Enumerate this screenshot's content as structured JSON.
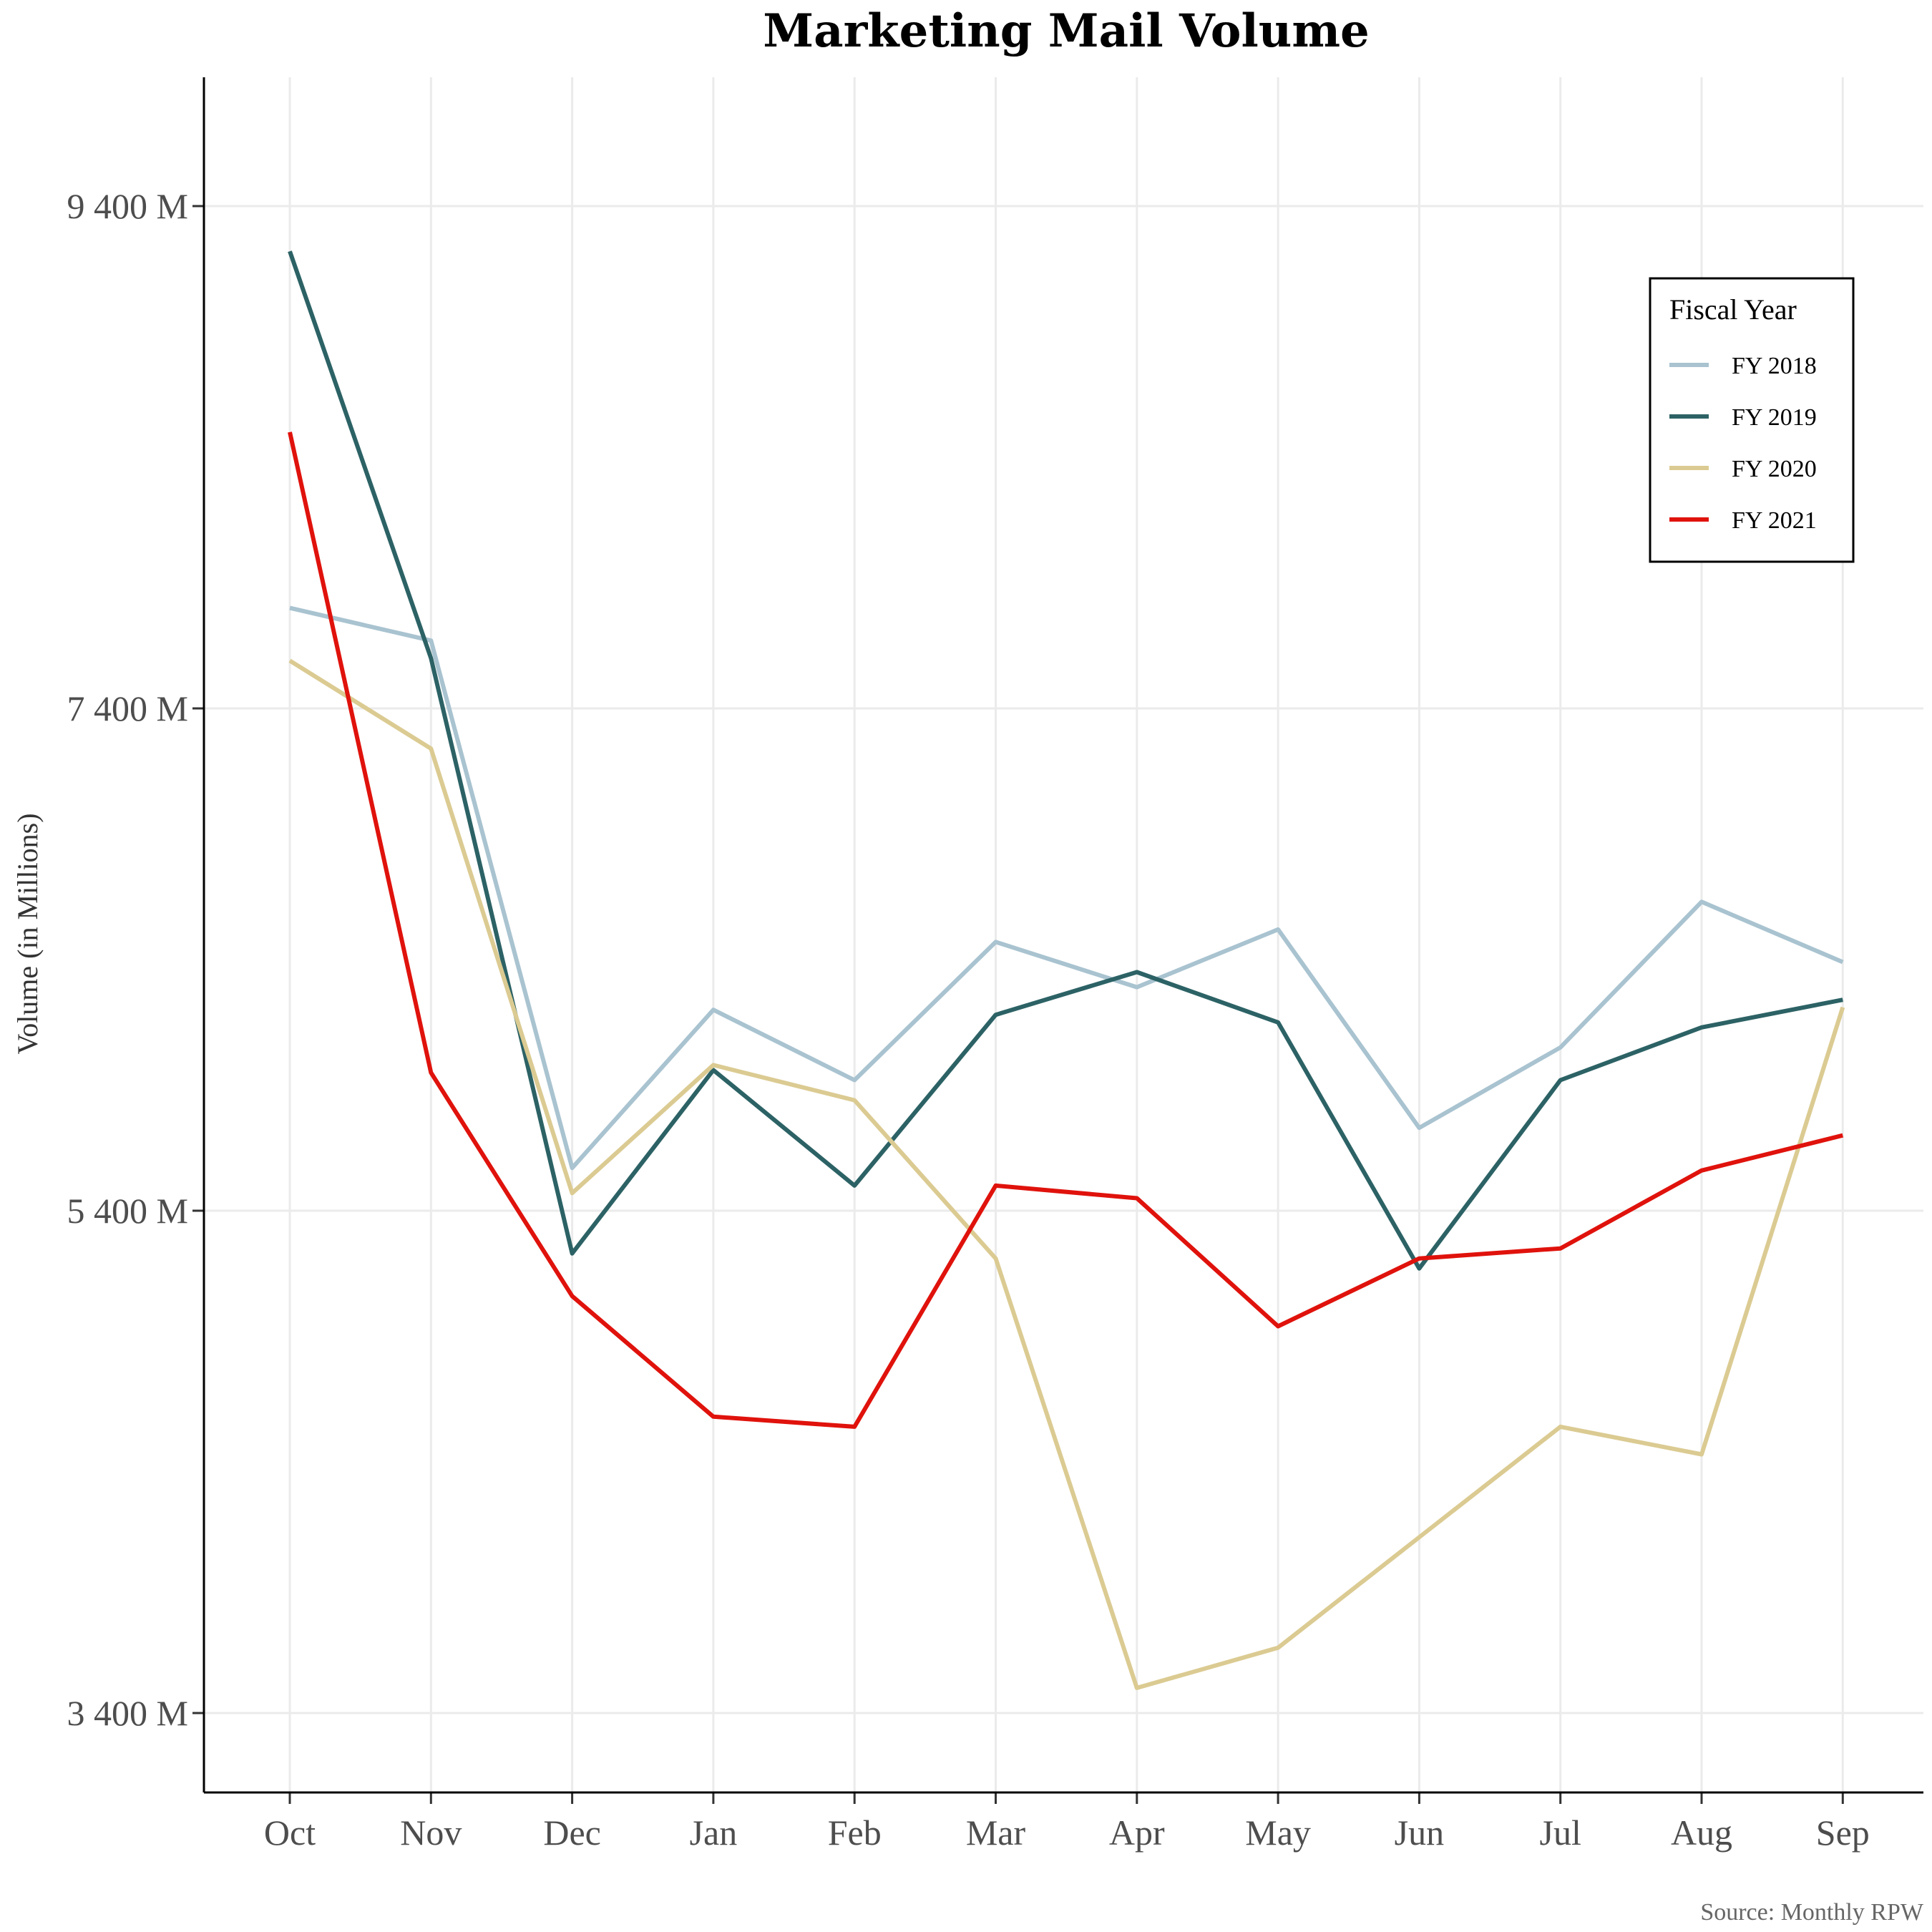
{
  "chart_data": {
    "type": "line",
    "title": "Marketing Mail Volume",
    "xlabel": "",
    "ylabel": "Volume (in Millions)",
    "categories": [
      "Oct",
      "Nov",
      "Dec",
      "Jan",
      "Feb",
      "Mar",
      "Apr",
      "May",
      "Jun",
      "Jul",
      "Aug",
      "Sep"
    ],
    "y_ticks": [
      3400,
      5400,
      7400,
      9400
    ],
    "y_tick_labels": [
      "3 400 M",
      "5 400 M",
      "7 400 M",
      "9 400 M"
    ],
    "ylim": [
      3100,
      10200
    ],
    "grid": true,
    "legend": {
      "title": "Fiscal Year",
      "position": "top-right"
    },
    "series": [
      {
        "name": "FY 2018",
        "color": "#a9c3d0",
        "values": [
          7800,
          7670,
          5570,
          6200,
          5920,
          6470,
          6290,
          6520,
          5730,
          6050,
          6630,
          6390
        ]
      },
      {
        "name": "FY 2019",
        "color": "#2c6265",
        "values": [
          9220,
          7600,
          5230,
          5960,
          5500,
          6180,
          6350,
          6150,
          5170,
          5920,
          6130,
          6240
        ]
      },
      {
        "name": "FY 2020",
        "color": "#dbcb92",
        "values": [
          7590,
          7240,
          5470,
          5980,
          5840,
          5210,
          3500,
          3660,
          4100,
          4540,
          4430,
          6210
        ]
      },
      {
        "name": "FY 2021",
        "color": "#e0120c",
        "values": [
          8500,
          5950,
          5060,
          4580,
          4540,
          5500,
          5450,
          4940,
          5210,
          5250,
          5560,
          5700
        ]
      }
    ],
    "caption": "Source: Monthly RPW"
  }
}
